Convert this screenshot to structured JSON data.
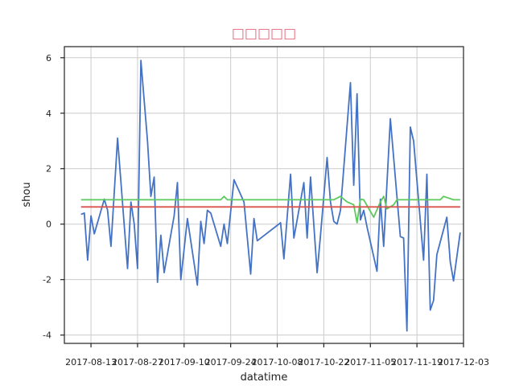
{
  "chart_data": {
    "type": "line",
    "title": "□□□□□",
    "xlabel": "datatime",
    "ylabel": "shou",
    "xlim": [
      "2017-08-05",
      "2017-12-03"
    ],
    "ylim": [
      -4.3,
      6.4
    ],
    "grid": true,
    "x_ticks": [
      "2017-08-13",
      "2017-08-27",
      "2017-09-10",
      "2017-09-24",
      "2017-10-08",
      "2017-10-22",
      "2017-11-05",
      "2017-11-19",
      "2017-12-03"
    ],
    "y_ticks": [
      -4,
      -2,
      0,
      2,
      4,
      6
    ],
    "series": [
      {
        "color": "#4472c4",
        "points": [
          [
            "2017-08-10",
            0.35
          ],
          [
            "2017-08-11",
            0.4
          ],
          [
            "2017-08-12",
            -1.3
          ],
          [
            "2017-08-13",
            0.3
          ],
          [
            "2017-08-14",
            -0.35
          ],
          [
            "2017-08-17",
            0.9
          ],
          [
            "2017-08-18",
            0.5
          ],
          [
            "2017-08-19",
            -0.8
          ],
          [
            "2017-08-21",
            3.1
          ],
          [
            "2017-08-24",
            -1.6
          ],
          [
            "2017-08-25",
            0.8
          ],
          [
            "2017-08-26",
            0.0
          ],
          [
            "2017-08-27",
            -1.6
          ],
          [
            "2017-08-28",
            5.9
          ],
          [
            "2017-08-30",
            3.0
          ],
          [
            "2017-08-31",
            1.0
          ],
          [
            "2017-09-01",
            1.7
          ],
          [
            "2017-09-02",
            -2.1
          ],
          [
            "2017-09-03",
            -0.4
          ],
          [
            "2017-09-04",
            -1.75
          ],
          [
            "2017-09-07",
            0.3
          ],
          [
            "2017-09-08",
            1.5
          ],
          [
            "2017-09-09",
            -2.0
          ],
          [
            "2017-09-11",
            0.2
          ],
          [
            "2017-09-14",
            -2.2
          ],
          [
            "2017-09-15",
            0.1
          ],
          [
            "2017-09-16",
            -0.7
          ],
          [
            "2017-09-17",
            0.5
          ],
          [
            "2017-09-18",
            0.4
          ],
          [
            "2017-09-21",
            -0.8
          ],
          [
            "2017-09-22",
            0.0
          ],
          [
            "2017-09-23",
            -0.7
          ],
          [
            "2017-09-25",
            1.6
          ],
          [
            "2017-09-28",
            0.8
          ],
          [
            "2017-09-30",
            -1.8
          ],
          [
            "2017-10-01",
            0.2
          ],
          [
            "2017-10-02",
            -0.6
          ],
          [
            "2017-10-09",
            0.05
          ],
          [
            "2017-10-10",
            -1.25
          ],
          [
            "2017-10-12",
            1.8
          ],
          [
            "2017-10-13",
            -0.5
          ],
          [
            "2017-10-16",
            1.5
          ],
          [
            "2017-10-17",
            -0.5
          ],
          [
            "2017-10-18",
            1.7
          ],
          [
            "2017-10-20",
            -1.75
          ],
          [
            "2017-10-21",
            -0.4
          ],
          [
            "2017-10-23",
            2.4
          ],
          [
            "2017-10-24",
            0.8
          ],
          [
            "2017-10-25",
            0.1
          ],
          [
            "2017-10-26",
            0.0
          ],
          [
            "2017-10-27",
            0.5
          ],
          [
            "2017-10-30",
            5.1
          ],
          [
            "2017-10-31",
            1.4
          ],
          [
            "2017-11-01",
            4.7
          ],
          [
            "2017-11-02",
            0.15
          ],
          [
            "2017-11-03",
            0.5
          ],
          [
            "2017-11-04",
            -0.1
          ],
          [
            "2017-11-07",
            -1.7
          ],
          [
            "2017-11-08",
            0.9
          ],
          [
            "2017-11-09",
            -0.8
          ],
          [
            "2017-11-11",
            3.8
          ],
          [
            "2017-11-14",
            -0.45
          ],
          [
            "2017-11-15",
            -0.5
          ],
          [
            "2017-11-16",
            -3.85
          ],
          [
            "2017-11-17",
            3.5
          ],
          [
            "2017-11-18",
            3.0
          ],
          [
            "2017-11-21",
            -1.3
          ],
          [
            "2017-11-22",
            1.8
          ],
          [
            "2017-11-23",
            -3.1
          ],
          [
            "2017-11-24",
            -2.75
          ],
          [
            "2017-11-25",
            -1.1
          ],
          [
            "2017-11-28",
            0.25
          ],
          [
            "2017-11-29",
            -1.35
          ],
          [
            "2017-11-30",
            -2.05
          ],
          [
            "2017-12-02",
            -0.3
          ]
        ]
      },
      {
        "color": "#5cc95c",
        "points": [
          [
            "2017-08-10",
            0.88
          ],
          [
            "2017-09-21",
            0.88
          ],
          [
            "2017-09-22",
            1.0
          ],
          [
            "2017-09-23",
            0.88
          ],
          [
            "2017-10-25",
            0.88
          ],
          [
            "2017-10-27",
            1.0
          ],
          [
            "2017-10-29",
            0.8
          ],
          [
            "2017-10-31",
            0.7
          ],
          [
            "2017-11-01",
            0.05
          ],
          [
            "2017-11-02",
            0.9
          ],
          [
            "2017-11-03",
            0.88
          ],
          [
            "2017-11-06",
            0.25
          ],
          [
            "2017-11-08",
            0.8
          ],
          [
            "2017-11-09",
            1.0
          ],
          [
            "2017-11-10",
            0.55
          ],
          [
            "2017-11-12",
            0.7
          ],
          [
            "2017-11-13",
            0.88
          ],
          [
            "2017-11-26",
            0.88
          ],
          [
            "2017-11-27",
            1.0
          ],
          [
            "2017-11-30",
            0.88
          ],
          [
            "2017-12-02",
            0.88
          ]
        ]
      },
      {
        "color": "#d9534f",
        "points": [
          [
            "2017-08-10",
            0.62
          ],
          [
            "2017-12-02",
            0.62
          ]
        ]
      }
    ]
  }
}
